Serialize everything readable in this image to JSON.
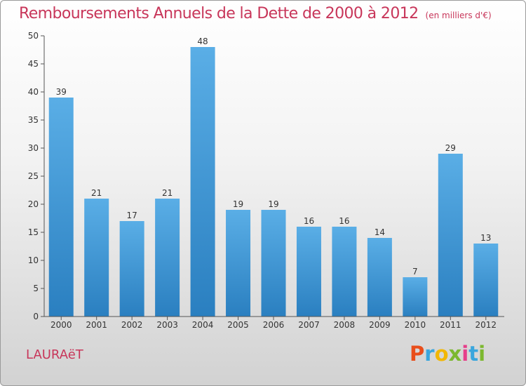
{
  "chart_data": {
    "type": "bar",
    "title": "Remboursements Annuels de la Dette de 2000 à 2012",
    "subtitle": "(en milliers d'€)",
    "categories": [
      "2000",
      "2001",
      "2002",
      "2003",
      "2004",
      "2005",
      "2006",
      "2007",
      "2008",
      "2009",
      "2010",
      "2011",
      "2012"
    ],
    "values": [
      39,
      21,
      17,
      21,
      48,
      19,
      19,
      16,
      16,
      14,
      7,
      29,
      13
    ],
    "ylim": [
      0,
      50
    ],
    "yticks": [
      0,
      5,
      10,
      15,
      20,
      25,
      30,
      35,
      40,
      45,
      50
    ],
    "grid": false,
    "bar_color_top": "#5aaee6",
    "bar_color_bottom": "#2a7fc0"
  },
  "footer": {
    "commune": "LAURAëT",
    "brand_letters": [
      "P",
      "r",
      "o",
      "x",
      "i",
      "t",
      "i"
    ],
    "brand_colors": [
      "#e94e1b",
      "#3aa6dd",
      "#f2b705",
      "#7cb82f",
      "#e63e8a",
      "#3aa6dd",
      "#7cb82f"
    ]
  },
  "colors": {
    "accent": "#c8365a",
    "axis": "#555555"
  }
}
